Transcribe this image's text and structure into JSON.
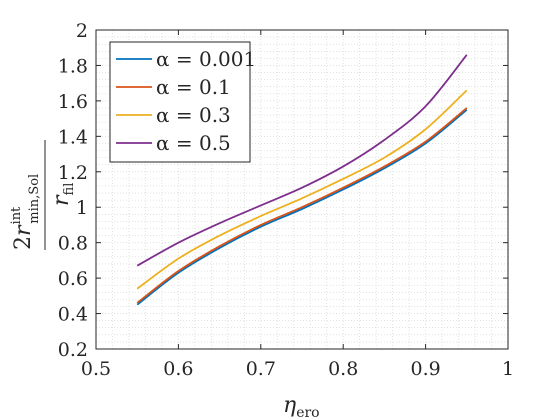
{
  "chart_data": {
    "type": "line",
    "xlabel": {
      "symbol": "η",
      "subscript": "ero"
    },
    "ylabel": {
      "coef": "2",
      "symbol": "r",
      "superscript": "int",
      "subscript": "min,Sol",
      "denominator_symbol": "r",
      "denominator_subscript": "fil"
    },
    "xlim": [
      0.5,
      1
    ],
    "ylim": [
      0.2,
      2
    ],
    "xticks": [
      "0.5",
      "0.6",
      "0.7",
      "0.8",
      "0.9",
      "1"
    ],
    "yticks": [
      "0.2",
      "0.4",
      "0.6",
      "0.8",
      "1",
      "1.2",
      "1.4",
      "1.6",
      "1.8",
      "2"
    ],
    "grid": "minor-dotted",
    "legend_position": "top-left",
    "x": [
      0.55,
      0.6,
      0.65,
      0.7,
      0.75,
      0.8,
      0.85,
      0.9,
      0.95
    ],
    "series": [
      {
        "name": "α = 0.001",
        "color": "#0072BD",
        "values": [
          0.45,
          0.63,
          0.77,
          0.89,
          0.99,
          1.1,
          1.22,
          1.36,
          1.55
        ]
      },
      {
        "name": "α = 0.1",
        "color": "#D95319",
        "values": [
          0.46,
          0.64,
          0.78,
          0.9,
          1.0,
          1.11,
          1.23,
          1.37,
          1.56
        ]
      },
      {
        "name": "α = 0.3",
        "color": "#EDB120",
        "values": [
          0.54,
          0.71,
          0.84,
          0.95,
          1.05,
          1.16,
          1.28,
          1.44,
          1.66
        ]
      },
      {
        "name": "α = 0.5",
        "color": "#7E2F8E",
        "values": [
          0.67,
          0.8,
          0.91,
          1.01,
          1.11,
          1.23,
          1.38,
          1.57,
          1.86
        ]
      }
    ]
  }
}
